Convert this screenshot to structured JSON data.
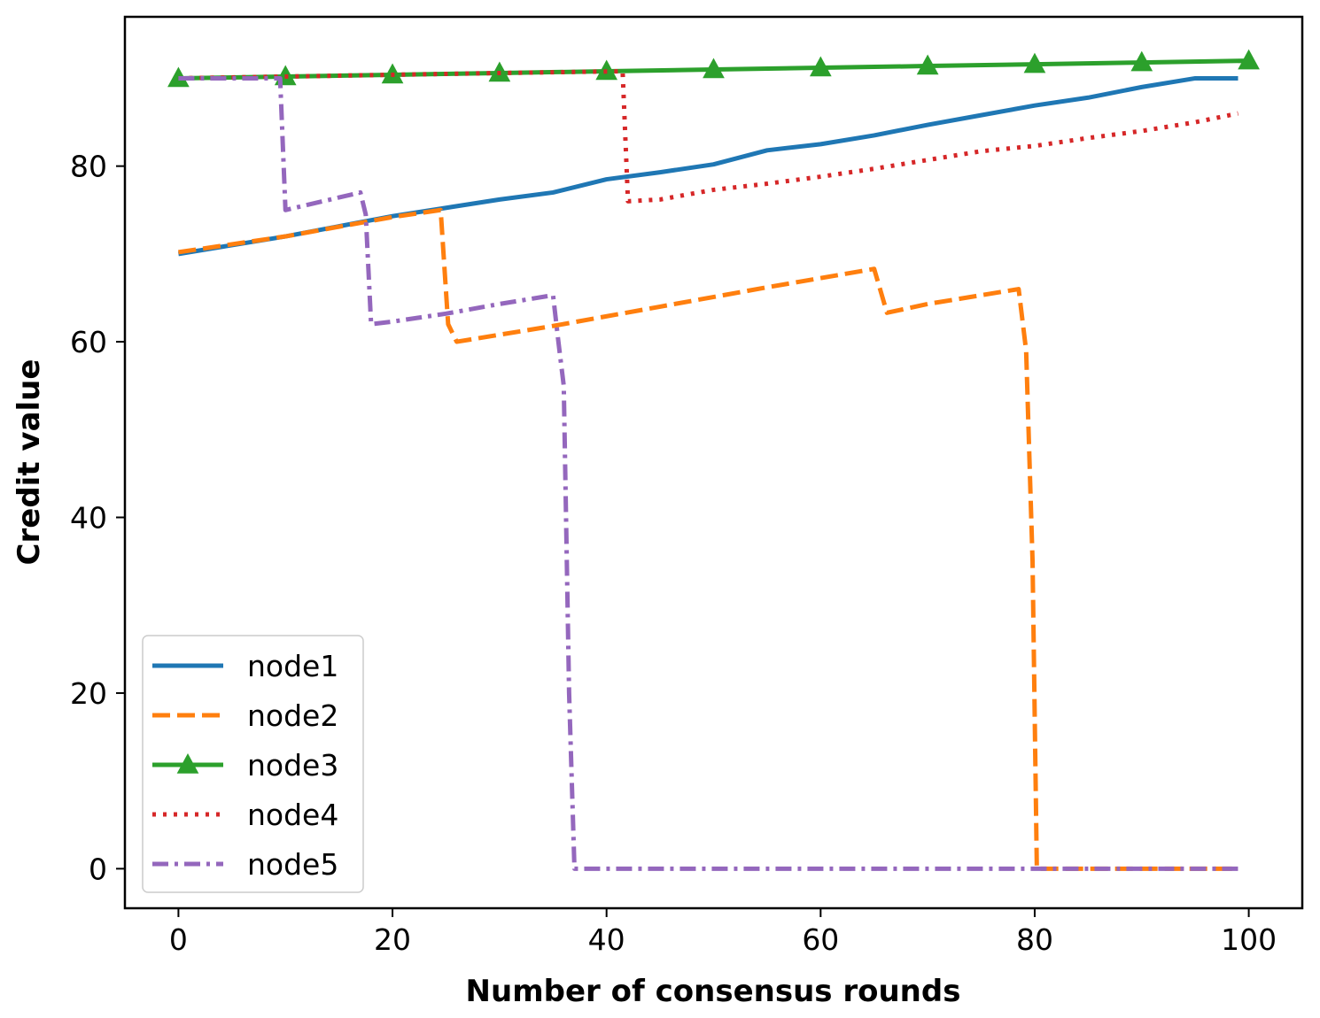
{
  "chart_data": {
    "type": "line",
    "title": "",
    "xlabel": "Number of consensus rounds",
    "ylabel": "Credit value",
    "xlim": [
      -5,
      105
    ],
    "ylim": [
      -4.5,
      97
    ],
    "xticks": [
      0,
      20,
      40,
      60,
      80,
      100
    ],
    "yticks": [
      0,
      20,
      40,
      60,
      80
    ],
    "xtick_labels": [
      "0",
      "20",
      "40",
      "60",
      "80",
      "100"
    ],
    "ytick_labels": [
      "0",
      "20",
      "40",
      "60",
      "80"
    ],
    "grid": false,
    "legend_position": "lower-left",
    "series": [
      {
        "name": "node1",
        "color": "#1f77b4",
        "style": "solid",
        "marker": "none",
        "x": [
          0,
          10,
          20,
          30,
          35,
          40,
          45,
          50,
          55,
          60,
          65,
          70,
          75,
          80,
          85,
          90,
          95,
          99
        ],
        "y": [
          70,
          72,
          74.3,
          76.2,
          77,
          78.5,
          79.3,
          80.2,
          81.8,
          82.5,
          83.5,
          84.7,
          85.8,
          86.9,
          87.8,
          89,
          90,
          90
        ]
      },
      {
        "name": "node2",
        "color": "#ff7f0e",
        "style": "dashed",
        "marker": "none",
        "x": [
          0,
          10,
          20,
          24.5,
          25.2,
          26,
          35,
          45,
          55,
          65,
          66.2,
          70,
          78.5,
          79.2,
          79.8,
          80.2,
          90,
          99
        ],
        "y": [
          70.2,
          72,
          74.2,
          75,
          62,
          60,
          61.8,
          64,
          66.2,
          68.3,
          63.3,
          64.3,
          66,
          59,
          35,
          0,
          0,
          0
        ]
      },
      {
        "name": "node3",
        "color": "#2ca02c",
        "style": "solid",
        "marker": "triangle",
        "x": [
          0,
          10,
          20,
          30,
          40,
          50,
          60,
          70,
          80,
          90,
          100
        ],
        "y": [
          90,
          90.2,
          90.4,
          90.6,
          90.8,
          91,
          91.2,
          91.4,
          91.6,
          91.8,
          92
        ]
      },
      {
        "name": "node4",
        "color": "#d62728",
        "style": "dotted",
        "marker": "none",
        "x": [
          0,
          10,
          20,
          30,
          41.5,
          42,
          45,
          50,
          55,
          60,
          65,
          70,
          75,
          80,
          85,
          90,
          95,
          99
        ],
        "y": [
          90,
          90.2,
          90.4,
          90.6,
          90.8,
          76,
          76.2,
          77.3,
          78,
          78.8,
          79.7,
          80.7,
          81.7,
          82.3,
          83.2,
          84,
          85,
          86
        ]
      },
      {
        "name": "node5",
        "color": "#9467bd",
        "style": "dashdot",
        "marker": "none",
        "x": [
          0,
          9.5,
          10,
          17,
          17.5,
          18,
          20,
          25,
          30,
          35,
          35.5,
          36,
          36.5,
          37,
          45,
          55,
          65,
          75,
          85,
          99
        ],
        "y": [
          90,
          90,
          75,
          77,
          74.5,
          62,
          62.3,
          63.2,
          64.3,
          65.3,
          60,
          55,
          20,
          0,
          0,
          0,
          0,
          0,
          0,
          0
        ]
      }
    ]
  }
}
